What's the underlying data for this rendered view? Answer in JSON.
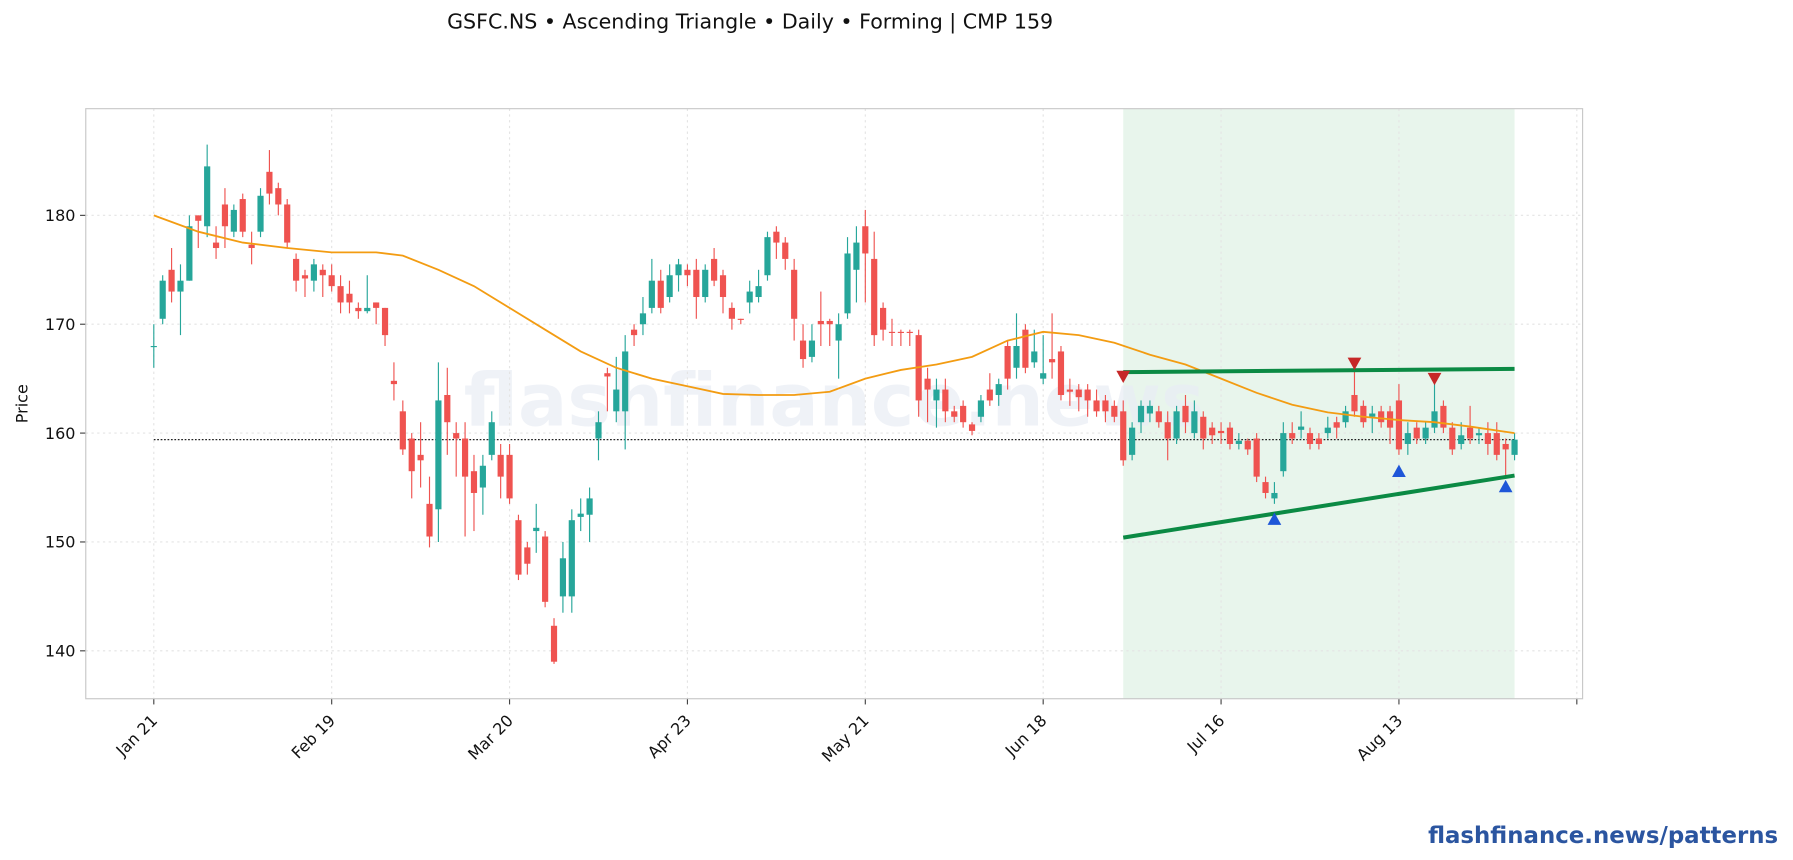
{
  "chart_data": {
    "type": "candlestick",
    "title": "GSFC.NS  •  Ascending Triangle  •  Daily  •  Forming  |  CMP 159",
    "ylabel": "Price",
    "watermark": "flashfinance.news",
    "footer": "flashfinance.news/patterns",
    "up_color": "#26a69a",
    "down_color": "#ef5350",
    "xlim": [
      -7.65,
      160.65
    ],
    "ylim": [
      135.6,
      189.8
    ],
    "yticks": [
      140,
      150,
      160,
      170,
      180
    ],
    "xticks": [
      {
        "value": 0,
        "label": "Jan 21"
      },
      {
        "value": 20,
        "label": "Feb 19"
      },
      {
        "value": 40,
        "label": "Mar 20"
      },
      {
        "value": 60,
        "label": "Apr 23"
      },
      {
        "value": 80,
        "label": "May 21"
      },
      {
        "value": 100,
        "label": "Jun 18"
      },
      {
        "value": 120,
        "label": "Jul 16"
      },
      {
        "value": 140,
        "label": "Aug 13"
      },
      {
        "value": 160,
        "label": null
      }
    ],
    "grid": true,
    "open": [
      168,
      170.5,
      175,
      173,
      174,
      180,
      179,
      177.5,
      181,
      178.5,
      181.5,
      177.3,
      178.5,
      184,
      182.5,
      181,
      176,
      174.5,
      174,
      175,
      174.5,
      173.5,
      172.8,
      171.5,
      171.2,
      172,
      171.5,
      164.8,
      162,
      159.5,
      158,
      153.5,
      153,
      163.5,
      160,
      159.5,
      156.5,
      155,
      158,
      158,
      158,
      152,
      149.5,
      151,
      150.5,
      142.3,
      145,
      145,
      152.3,
      152.5,
      159.5,
      165.5,
      162,
      162,
      169.5,
      170,
      171.5,
      174,
      172.5,
      174.5,
      175,
      175,
      172.5,
      176,
      174.5,
      171.5,
      170.5,
      172,
      172.5,
      174.5,
      178.5,
      177.5,
      175,
      168.5,
      167,
      170.3,
      170.3,
      168.5,
      171,
      175,
      179,
      176,
      171.5,
      169.3,
      169.3,
      169.3,
      169,
      165,
      163,
      164,
      162,
      162.5,
      160.8,
      161.5,
      164,
      163.5,
      168,
      166,
      169.5,
      166.5,
      165,
      166.8,
      167.5,
      164,
      164,
      164,
      163,
      163,
      162.5,
      162,
      158,
      161,
      161.8,
      162,
      161,
      159.5,
      162.5,
      160,
      161.5,
      160.5,
      160.2,
      160.5,
      159,
      159.3,
      159.5,
      155.5,
      154,
      156.5,
      160,
      160.3,
      160,
      159.5,
      160,
      161,
      161,
      163.5,
      162.5,
      161.5,
      162,
      162,
      163,
      159,
      160.5,
      159.5,
      160.5,
      162.5,
      160.5,
      159,
      160.5,
      159.8,
      160,
      160,
      159,
      158
    ],
    "high": [
      170,
      174.5,
      177,
      175.5,
      180,
      180,
      186.5,
      179,
      182.5,
      181,
      182,
      178.5,
      182.5,
      186,
      183,
      181.5,
      176.5,
      175,
      176,
      175.5,
      175.5,
      174.5,
      174,
      172,
      174.5,
      172,
      171.5,
      166.5,
      163,
      160,
      161,
      156,
      166.5,
      166,
      161,
      161,
      158,
      158,
      162,
      159,
      159,
      152.5,
      150,
      153.5,
      151,
      143,
      150,
      153,
      154,
      155,
      162,
      166,
      167,
      169,
      170,
      172.5,
      176,
      175,
      175.5,
      176,
      175.5,
      176,
      175.5,
      177,
      175,
      172,
      170.5,
      174,
      175,
      178.5,
      179,
      178,
      176,
      170,
      170,
      173,
      170.5,
      171,
      178,
      179,
      180.5,
      178.5,
      172,
      170.5,
      169.5,
      169.5,
      169.5,
      166,
      165,
      165,
      162.5,
      163,
      161,
      163.5,
      165.5,
      165,
      168.5,
      171,
      170,
      169.5,
      169,
      171,
      168,
      165,
      164.5,
      164.5,
      164,
      163.5,
      163,
      163,
      161,
      163,
      163,
      162.5,
      162,
      162.5,
      163.5,
      163,
      162,
      161,
      161,
      161,
      160,
      159.5,
      160,
      156,
      155.5,
      161,
      161,
      162,
      160.5,
      160,
      161.5,
      161.5,
      162.5,
      166.5,
      163,
      162.5,
      162.5,
      162.5,
      164.5,
      161,
      161,
      161,
      164.5,
      163,
      161,
      161,
      162.5,
      160.5,
      161,
      161,
      159.5,
      160
    ],
    "low": [
      166,
      170,
      172,
      169,
      174,
      177,
      178,
      176,
      177,
      178,
      178,
      175.5,
      178,
      181,
      180,
      177,
      173,
      172.5,
      173,
      172.5,
      173,
      171,
      171,
      170.5,
      171,
      170,
      168,
      163,
      158,
      154,
      155,
      149.5,
      150,
      158,
      156,
      150.5,
      151,
      152.5,
      157.5,
      154,
      153.5,
      146.5,
      147,
      149,
      144,
      138.8,
      143.5,
      143.5,
      151,
      150,
      157.5,
      162,
      161,
      158.5,
      168,
      169,
      171,
      171,
      172,
      173,
      173.5,
      170.5,
      172,
      173.5,
      171,
      169.5,
      170,
      171,
      172,
      174,
      176,
      175,
      168.5,
      166,
      166.5,
      168,
      168,
      165,
      170.5,
      172,
      172,
      168,
      168.5,
      168,
      168,
      168,
      161.5,
      161,
      160.5,
      161,
      161,
      160.5,
      159.8,
      161,
      162.5,
      162.5,
      164,
      165,
      165.5,
      166,
      164.5,
      165,
      163,
      162.5,
      162,
      161.5,
      161.5,
      161,
      161,
      157,
      157.5,
      160,
      161,
      160.5,
      157.5,
      159,
      160,
      159.5,
      158.5,
      159,
      159,
      158.5,
      158.5,
      158,
      155.5,
      154,
      153.5,
      156,
      159,
      159.5,
      158.5,
      158.5,
      159.5,
      159.5,
      160.5,
      161.5,
      160.5,
      160,
      160.5,
      159,
      158,
      158,
      159,
      159,
      160,
      160,
      158,
      158.5,
      159,
      159,
      158,
      157.5,
      156,
      157.5
    ],
    "close": [
      168,
      174,
      173,
      174,
      179,
      179.5,
      184.5,
      177,
      179,
      180.5,
      178.5,
      177,
      181.8,
      182,
      181,
      177.5,
      174,
      174.2,
      175.5,
      174.5,
      173.5,
      172,
      172,
      171.2,
      171.5,
      171.5,
      169,
      164.5,
      158.5,
      156.5,
      157.5,
      150.5,
      163,
      161,
      159.5,
      156,
      154.5,
      157,
      161,
      156,
      154,
      147,
      148,
      151.3,
      144.5,
      139,
      148.5,
      152,
      152.6,
      154,
      161,
      165.2,
      164,
      167.5,
      169,
      171,
      174,
      171.5,
      174.5,
      175.5,
      174.5,
      172.5,
      175,
      174,
      172.5,
      170.5,
      170.4,
      173,
      173.5,
      178,
      177.5,
      176,
      170.5,
      166.8,
      168.5,
      170,
      170,
      170,
      176.5,
      177.5,
      176.5,
      169,
      169.5,
      169.2,
      169.2,
      169.2,
      163,
      164,
      164,
      162,
      161.5,
      161,
      160.2,
      163,
      163,
      164.5,
      165,
      168,
      166,
      167.5,
      165.5,
      166.5,
      163.5,
      163.8,
      163.3,
      163,
      162,
      162,
      161.5,
      157.5,
      160.5,
      162.5,
      162.5,
      161,
      159.5,
      162,
      161,
      162,
      159.5,
      159.8,
      160,
      159,
      159.3,
      158.5,
      156,
      154.5,
      154.5,
      160,
      159.5,
      160.6,
      159,
      159,
      160.5,
      160.5,
      162,
      162,
      161,
      161.8,
      161,
      160.5,
      158.5,
      160,
      159.5,
      160.5,
      162,
      160.5,
      158.5,
      159.8,
      159.5,
      160,
      159,
      158,
      158.5,
      159.4
    ],
    "ma": {
      "name": null,
      "color": "#f39c12",
      "x": [
        0,
        5,
        10,
        15,
        20,
        25,
        28,
        32,
        36,
        40,
        44,
        48,
        52,
        56,
        60,
        64,
        68,
        72,
        76,
        80,
        84,
        88,
        92,
        96,
        100,
        104,
        108,
        112,
        116,
        120,
        124,
        128,
        132,
        136,
        140,
        144,
        148,
        153
      ],
      "values": [
        180,
        178.5,
        177.5,
        177,
        176.6,
        176.6,
        176.3,
        175,
        173.5,
        171.5,
        169.5,
        167.5,
        166,
        165,
        164.3,
        163.6,
        163.5,
        163.5,
        163.8,
        165,
        165.8,
        166.3,
        167,
        168.5,
        169.3,
        169,
        168.3,
        167.2,
        166.3,
        165,
        163.7,
        162.6,
        161.9,
        161.5,
        161.2,
        161,
        160.6,
        160
      ]
    },
    "pattern": {
      "x": [
        109,
        153
      ],
      "shade_color": "#e8f5ec",
      "line_color": "#0b8a44",
      "upper": [
        165.6,
        165.9
      ],
      "lower": [
        150.4,
        156.1
      ]
    },
    "pivot_highs": {
      "color": "#c62828",
      "x": [
        109,
        135,
        144
      ],
      "values": [
        165.1,
        166.3,
        164.9
      ]
    },
    "pivot_lows": {
      "color": "#1e56d8",
      "x": [
        126,
        140,
        152
      ],
      "values": [
        152.2,
        156.6,
        155.2
      ]
    }
  }
}
